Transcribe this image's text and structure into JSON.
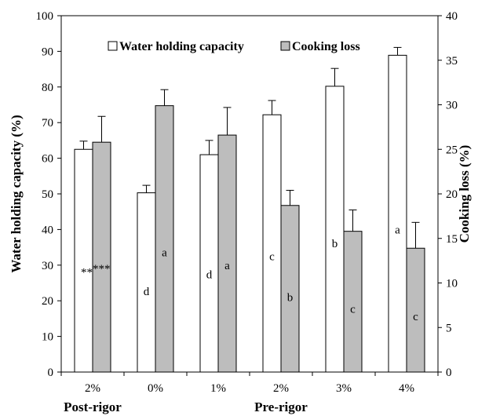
{
  "chart_data": {
    "type": "bar",
    "categories": [
      "2%",
      "0%",
      "1%",
      "2%",
      "3%",
      "4%"
    ],
    "groups": [
      {
        "label": "Post-rigor",
        "categories": [
          0
        ]
      },
      {
        "label": "Pre-rigor",
        "categories": [
          1,
          2,
          3,
          4,
          5
        ]
      }
    ],
    "series": [
      {
        "name": "Water holding capacity",
        "axis": "left",
        "color": "#ffffff",
        "values": [
          62.5,
          50.3,
          61.0,
          72.2,
          80.2,
          88.9
        ],
        "errors": [
          2.3,
          2.1,
          4.0,
          4.0,
          5.0,
          2.2
        ],
        "labels": [
          "**",
          "d",
          "d",
          "c",
          "b",
          "a"
        ]
      },
      {
        "name": "Cooking loss",
        "axis": "right",
        "color": "#bdbdbd",
        "values": [
          25.8,
          29.9,
          26.6,
          18.7,
          15.8,
          13.9
        ],
        "errors": [
          2.9,
          1.8,
          3.1,
          1.7,
          2.4,
          2.9
        ],
        "labels": [
          "***",
          "a",
          "a",
          "b",
          "c",
          "c"
        ]
      }
    ],
    "ylabel": "Water holding capacity (%)",
    "ylim": [
      0,
      100
    ],
    "yticks": [
      0,
      10,
      20,
      30,
      40,
      50,
      60,
      70,
      80,
      90,
      100
    ],
    "y2label": "Cooking loss (%)",
    "y2lim": [
      0,
      40
    ],
    "y2ticks": [
      0,
      5,
      10,
      15,
      20,
      25,
      30,
      35,
      40
    ],
    "legend_position": "top-center",
    "grid": false
  }
}
